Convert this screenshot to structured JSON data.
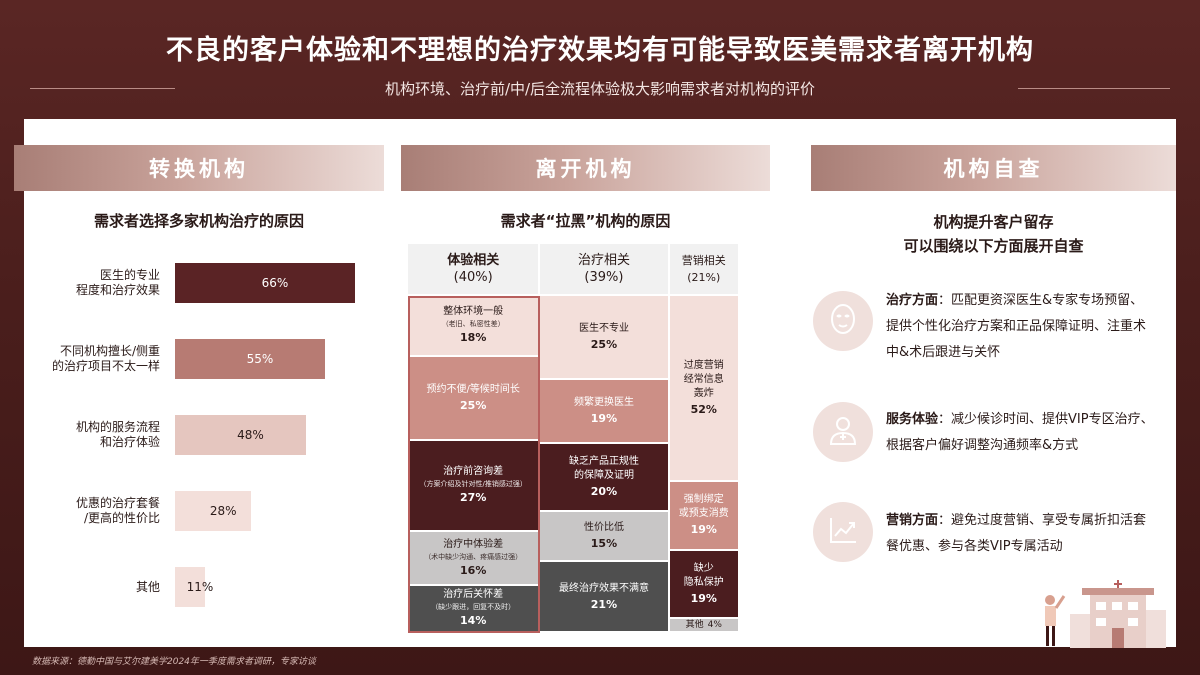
{
  "header": {
    "title": "不良的客户体验和不理想的治疗效果均有可能导致医美需求者离开机构",
    "subtitle": "机构环境、治疗前/中/后全流程体验极大影响需求者对机构的评价"
  },
  "source": "数据来源：德勤中国与艾尔建美学2024年一季度需求者调研，专家访谈",
  "sections": {
    "switch": {
      "title": "转换机构",
      "subtitle": "需求者选择多家机构治疗的原因"
    },
    "leave": {
      "title": "离开机构",
      "subtitle": "需求者“拉黑”机构的原因"
    },
    "check": {
      "title": "机构自查",
      "subtitle_line1": "机构提升客户留存",
      "subtitle_line2": "可以围绕以下方面展开自查"
    }
  },
  "colors": {
    "dark": "#5a2325",
    "mid": "#b77b73",
    "light": "#e5c6bf",
    "lighter": "#f3dfda",
    "grey": "#c8c6c6",
    "darkgrey": "#4a4a4a",
    "highlight": "#b85f5d"
  },
  "chart_data": [
    {
      "type": "bar",
      "orientation": "horizontal",
      "categories": [
        "医生的专业\n程度和治疗效果",
        "不同机构擅长/侧重\n的治疗项目不太一样",
        "机构的服务流程\n和治疗体验",
        "优惠的治疗套餐\n/更高的性价比",
        "其他"
      ],
      "values": [
        66,
        55,
        48,
        28,
        11
      ],
      "value_labels": [
        "66%",
        "55%",
        "48%",
        "28%",
        "11%"
      ],
      "xlim": [
        0,
        66
      ],
      "grid": false,
      "legend": "none"
    },
    {
      "type": "marimekko",
      "columns": [
        {
          "name": "体验相关",
          "share_label": "(40%)",
          "share": 40,
          "segments": [
            {
              "label": "整体环境一般",
              "note": "（老旧、私密性差）",
              "value": 18,
              "value_label": "18%"
            },
            {
              "label": "预约不便/等候时间长",
              "note": "",
              "value": 25,
              "value_label": "25%"
            },
            {
              "label": "治疗前咨询差",
              "note": "（方案介绍及针对性/推销感过强）",
              "value": 27,
              "value_label": "27%"
            },
            {
              "label": "治疗中体验差",
              "note": "（术中缺少沟通、疼痛感过强）",
              "value": 16,
              "value_label": "16%"
            },
            {
              "label": "治疗后关怀差",
              "note": "（缺少跟进，回复不及时）",
              "value": 14,
              "value_label": "14%"
            }
          ]
        },
        {
          "name": "治疗相关",
          "share_label": "(39%)",
          "share": 39,
          "segments": [
            {
              "label": "医生不专业",
              "note": "",
              "value": 25,
              "value_label": "25%"
            },
            {
              "label": "频繁更换医生",
              "note": "",
              "value": 19,
              "value_label": "19%"
            },
            {
              "label": "缺乏产品正规性\n的保障及证明",
              "note": "",
              "value": 20,
              "value_label": "20%"
            },
            {
              "label": "性价比低",
              "note": "",
              "value": 15,
              "value_label": "15%"
            },
            {
              "label": "最终治疗效果不满意",
              "note": "",
              "value": 21,
              "value_label": "21%"
            }
          ]
        },
        {
          "name": "营销相关",
          "share_label": "(21%)",
          "share": 21,
          "segments": [
            {
              "label": "过度营销\n经常信息\n轰炸",
              "note": "",
              "value": 52,
              "value_label": "52%"
            },
            {
              "label": "强制绑定\n或预支消费",
              "note": "",
              "value": 19,
              "value_label": "19%"
            },
            {
              "label": "缺少\n隐私保护",
              "note": "",
              "value": 19,
              "value_label": "19%"
            },
            {
              "label": "其他",
              "note": "",
              "value": 4,
              "value_label": "4%"
            }
          ]
        }
      ]
    }
  ],
  "tips": [
    {
      "icon": "face-mask-icon",
      "heading": "治疗方面",
      "text": "：匹配更资深医生&专家专场预留、提供个性化治疗方案和正品保障证明、注重术中&术后跟进与关怀"
    },
    {
      "icon": "doctor-icon",
      "heading": "服务体验",
      "text": "：减少候诊时间、提供VIP专区治疗、根据客户偏好调整沟通频率&方式"
    },
    {
      "icon": "growth-chart-icon",
      "heading": "营销方面",
      "text": "：避免过度营销、享受专属折扣活套餐优惠、参与各类VIP专属活动"
    }
  ]
}
